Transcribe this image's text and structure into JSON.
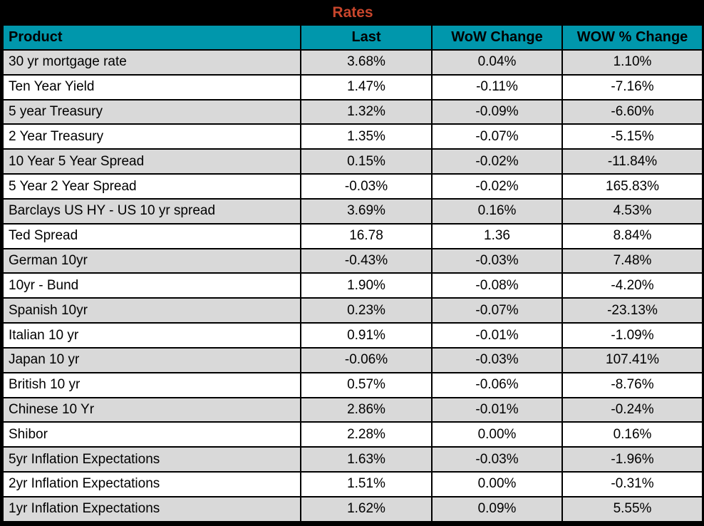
{
  "title": "Rates",
  "colors": {
    "title_bg": "#000000",
    "title_text": "#c8462c",
    "header_bg": "#0097ac",
    "header_text": "#000000",
    "row_alt_bg": "#d9d9d9",
    "row_bg": "#ffffff",
    "border": "#000000"
  },
  "chart_data": {
    "type": "table",
    "title": "Rates",
    "columns": [
      "Product",
      "Last",
      "WoW Change",
      "WOW % Change"
    ],
    "rows": [
      [
        "30 yr mortgage rate",
        "3.68%",
        "0.04%",
        "1.10%"
      ],
      [
        "Ten Year Yield",
        "1.47%",
        "-0.11%",
        "-7.16%"
      ],
      [
        "5 year Treasury",
        "1.32%",
        "-0.09%",
        "-6.60%"
      ],
      [
        "2 Year Treasury",
        "1.35%",
        "-0.07%",
        "-5.15%"
      ],
      [
        "10 Year 5 Year Spread",
        "0.15%",
        "-0.02%",
        "-11.84%"
      ],
      [
        "5 Year 2 Year Spread",
        "-0.03%",
        "-0.02%",
        "165.83%"
      ],
      [
        "Barclays US HY - US 10 yr spread",
        "3.69%",
        "0.16%",
        "4.53%"
      ],
      [
        "Ted Spread",
        "16.78",
        "1.36",
        "8.84%"
      ],
      [
        "German 10yr",
        "-0.43%",
        "-0.03%",
        "7.48%"
      ],
      [
        "10yr - Bund",
        "1.90%",
        "-0.08%",
        "-4.20%"
      ],
      [
        "Spanish 10yr",
        "0.23%",
        "-0.07%",
        "-23.13%"
      ],
      [
        "Italian 10 yr",
        "0.91%",
        "-0.01%",
        "-1.09%"
      ],
      [
        "Japan 10 yr",
        "-0.06%",
        "-0.03%",
        "107.41%"
      ],
      [
        "British 10 yr",
        "0.57%",
        "-0.06%",
        "-8.76%"
      ],
      [
        "Chinese 10 Yr",
        "2.86%",
        "-0.01%",
        "-0.24%"
      ],
      [
        "Shibor",
        "2.28%",
        "0.00%",
        "0.16%"
      ],
      [
        "5yr Inflation Expectations",
        "1.63%",
        "-0.03%",
        "-1.96%"
      ],
      [
        "2yr Inflation Expectations",
        "1.51%",
        "0.00%",
        "-0.31%"
      ],
      [
        "1yr Inflation Expectations",
        "1.62%",
        "0.09%",
        "5.55%"
      ]
    ],
    "layout": {
      "striping": "rows alternate gray/white starting with gray",
      "numeric_alignment": "center",
      "product_alignment": "left"
    }
  }
}
